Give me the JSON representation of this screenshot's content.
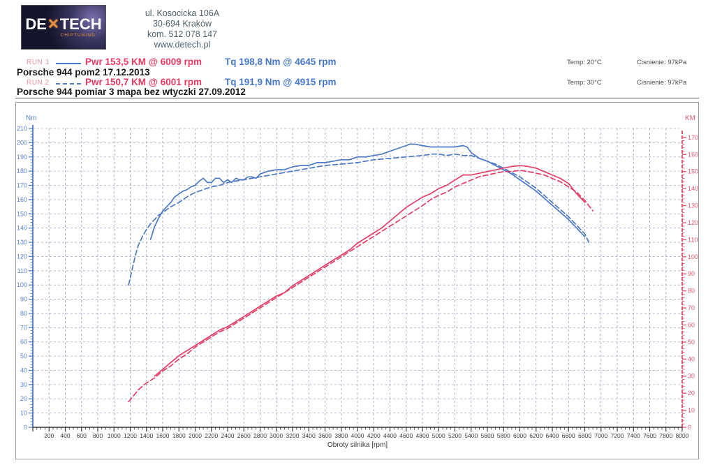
{
  "header": {
    "logo": {
      "left": "DE",
      "x_glyph": "✕",
      "right": "TECH",
      "sub": "CHIPTUNING"
    },
    "address_lines": [
      "ul. Kosocicka 106A",
      "30-694 Kraków",
      "kom. 512 078 147",
      "www.detech.pl"
    ]
  },
  "runs": [
    {
      "label": "RUN 1",
      "line_style": "solid",
      "pwr": "Pwr 153,5 KM @ 6009 rpm",
      "tq": "Tq 198,8 Nm @ 4645 rpm",
      "temp": "Temp: 20°C",
      "pressure": "Cisnienie: 97kPa",
      "title": "Porsche 944 pom2  17.12.2013"
    },
    {
      "label": "RUN 2",
      "line_style": "dashed",
      "pwr": "Pwr 150,7 KM @ 6001 rpm",
      "tq": "Tq 191,9 Nm @ 4915 rpm",
      "temp": "Temp: 30°C",
      "pressure": "Cisnienie: 97kPa",
      "title": "Porsche 944 pomiar 3 mapa bez wtyczki  27.09.2012"
    }
  ],
  "colors": {
    "torque_blue": "#4d79c4",
    "power_red": "#e23f68",
    "left_axis": "#5b82cc",
    "right_axis": "#e05672",
    "bottom_axis": "#333333",
    "grid_h": "#a4afc6",
    "grid_v": "#98a2b2",
    "pwr_text": "#ea3a63",
    "tq_text": "#4577cb",
    "run_label": "#ea93a0",
    "logo_accent": "#e8913f"
  },
  "chart_data": {
    "type": "line",
    "title": "",
    "xlabel": "Obroty silnika [rpm]",
    "x_range": [
      0,
      8000
    ],
    "x_tick_step": 200,
    "x_minor_step": 50,
    "grid": true,
    "left_axis": {
      "label": "Nm",
      "range": [
        0,
        210
      ],
      "tick_step": 10,
      "minor_step": 2
    },
    "right_axis": {
      "label": "KM",
      "range": [
        0,
        172
      ],
      "tick_step": 10,
      "minor_step": 2
    },
    "series": [
      {
        "name": "RUN 1 torque (Nm)",
        "axis": "left",
        "style": "solid",
        "color": "#4d79c4",
        "peak": "198,8 Nm @ 4645 rpm",
        "points": [
          [
            1450,
            132
          ],
          [
            1500,
            141
          ],
          [
            1550,
            147
          ],
          [
            1600,
            152
          ],
          [
            1650,
            155
          ],
          [
            1700,
            158
          ],
          [
            1750,
            162
          ],
          [
            1800,
            164
          ],
          [
            1850,
            166
          ],
          [
            1900,
            167
          ],
          [
            1950,
            169
          ],
          [
            2000,
            170
          ],
          [
            2050,
            173
          ],
          [
            2100,
            175
          ],
          [
            2150,
            172
          ],
          [
            2200,
            172
          ],
          [
            2250,
            175
          ],
          [
            2300,
            175
          ],
          [
            2350,
            172
          ],
          [
            2400,
            174
          ],
          [
            2450,
            172
          ],
          [
            2500,
            175
          ],
          [
            2550,
            174
          ],
          [
            2600,
            174
          ],
          [
            2650,
            176
          ],
          [
            2700,
            176
          ],
          [
            2750,
            175
          ],
          [
            2800,
            178
          ],
          [
            2850,
            179
          ],
          [
            2900,
            180
          ],
          [
            3000,
            181
          ],
          [
            3100,
            181
          ],
          [
            3200,
            183
          ],
          [
            3300,
            184
          ],
          [
            3400,
            184
          ],
          [
            3500,
            186
          ],
          [
            3600,
            186
          ],
          [
            3700,
            187
          ],
          [
            3800,
            188
          ],
          [
            3900,
            188
          ],
          [
            4000,
            190
          ],
          [
            4100,
            190
          ],
          [
            4200,
            191
          ],
          [
            4300,
            192
          ],
          [
            4400,
            194
          ],
          [
            4500,
            196
          ],
          [
            4600,
            198
          ],
          [
            4645,
            199
          ],
          [
            4700,
            199
          ],
          [
            4800,
            198
          ],
          [
            4900,
            197
          ],
          [
            5000,
            197
          ],
          [
            5100,
            197
          ],
          [
            5200,
            197
          ],
          [
            5300,
            198
          ],
          [
            5350,
            197
          ],
          [
            5400,
            193
          ],
          [
            5500,
            189
          ],
          [
            5600,
            187
          ],
          [
            5700,
            184
          ],
          [
            5800,
            181
          ],
          [
            5900,
            178
          ],
          [
            6000,
            174
          ],
          [
            6100,
            170
          ],
          [
            6200,
            166
          ],
          [
            6300,
            161
          ],
          [
            6400,
            156
          ],
          [
            6500,
            151
          ],
          [
            6600,
            146
          ],
          [
            6700,
            140
          ],
          [
            6800,
            134
          ]
        ]
      },
      {
        "name": "RUN 2 torque (Nm)",
        "axis": "left",
        "style": "dashed",
        "color": "#4d79c4",
        "peak": "191,9 Nm @ 4915 rpm",
        "points": [
          [
            1180,
            100
          ],
          [
            1220,
            110
          ],
          [
            1260,
            120
          ],
          [
            1300,
            128
          ],
          [
            1350,
            134
          ],
          [
            1400,
            139
          ],
          [
            1450,
            143
          ],
          [
            1500,
            146
          ],
          [
            1550,
            149
          ],
          [
            1600,
            151
          ],
          [
            1700,
            155
          ],
          [
            1800,
            158
          ],
          [
            1900,
            162
          ],
          [
            2000,
            165
          ],
          [
            2100,
            167
          ],
          [
            2200,
            169
          ],
          [
            2300,
            170
          ],
          [
            2400,
            172
          ],
          [
            2500,
            173
          ],
          [
            2600,
            174
          ],
          [
            2700,
            175
          ],
          [
            2800,
            176
          ],
          [
            2900,
            177
          ],
          [
            3000,
            178
          ],
          [
            3200,
            180
          ],
          [
            3400,
            182
          ],
          [
            3600,
            184
          ],
          [
            3800,
            185
          ],
          [
            4000,
            186
          ],
          [
            4200,
            188
          ],
          [
            4400,
            189
          ],
          [
            4600,
            190
          ],
          [
            4800,
            191
          ],
          [
            4915,
            192
          ],
          [
            5000,
            192
          ],
          [
            5100,
            191
          ],
          [
            5200,
            192
          ],
          [
            5300,
            191
          ],
          [
            5400,
            191
          ],
          [
            5500,
            189
          ],
          [
            5600,
            187
          ],
          [
            5700,
            185
          ],
          [
            5800,
            182
          ],
          [
            5900,
            179
          ],
          [
            6000,
            176
          ],
          [
            6100,
            172
          ],
          [
            6200,
            168
          ],
          [
            6300,
            163
          ],
          [
            6400,
            158
          ],
          [
            6500,
            153
          ],
          [
            6600,
            148
          ],
          [
            6700,
            142
          ],
          [
            6800,
            136
          ],
          [
            6850,
            130
          ]
        ]
      },
      {
        "name": "RUN 1 power (KM)",
        "axis": "right",
        "style": "solid",
        "color": "#e23f68",
        "peak": "153,5 KM @ 6009 rpm",
        "points": [
          [
            1500,
            30
          ],
          [
            1600,
            34
          ],
          [
            1700,
            38
          ],
          [
            1800,
            42
          ],
          [
            1900,
            45
          ],
          [
            2000,
            48
          ],
          [
            2100,
            51
          ],
          [
            2200,
            54
          ],
          [
            2300,
            57
          ],
          [
            2400,
            59
          ],
          [
            2500,
            62
          ],
          [
            2600,
            65
          ],
          [
            2700,
            68
          ],
          [
            2800,
            71
          ],
          [
            2900,
            74
          ],
          [
            3000,
            77
          ],
          [
            3100,
            79
          ],
          [
            3200,
            83
          ],
          [
            3300,
            86
          ],
          [
            3400,
            89
          ],
          [
            3500,
            92
          ],
          [
            3600,
            95
          ],
          [
            3700,
            98
          ],
          [
            3800,
            101
          ],
          [
            3900,
            104
          ],
          [
            4000,
            108
          ],
          [
            4100,
            111
          ],
          [
            4200,
            114
          ],
          [
            4300,
            117
          ],
          [
            4400,
            121
          ],
          [
            4500,
            125
          ],
          [
            4600,
            129
          ],
          [
            4700,
            132
          ],
          [
            4800,
            135
          ],
          [
            4900,
            137
          ],
          [
            5000,
            140
          ],
          [
            5100,
            142
          ],
          [
            5200,
            145
          ],
          [
            5300,
            148
          ],
          [
            5400,
            148
          ],
          [
            5500,
            149
          ],
          [
            5600,
            150
          ],
          [
            5700,
            151
          ],
          [
            5800,
            152
          ],
          [
            5900,
            153
          ],
          [
            6009,
            153.5
          ],
          [
            6100,
            153
          ],
          [
            6200,
            152
          ],
          [
            6300,
            150
          ],
          [
            6400,
            148
          ],
          [
            6500,
            146
          ],
          [
            6600,
            143
          ],
          [
            6700,
            137
          ],
          [
            6800,
            132
          ]
        ]
      },
      {
        "name": "RUN 2 power (KM)",
        "axis": "right",
        "style": "dashed",
        "color": "#e23f68",
        "peak": "150,7 KM @ 6001 rpm",
        "points": [
          [
            1180,
            15
          ],
          [
            1250,
            19
          ],
          [
            1300,
            22
          ],
          [
            1400,
            26
          ],
          [
            1500,
            29
          ],
          [
            1600,
            33
          ],
          [
            1700,
            36
          ],
          [
            1800,
            40
          ],
          [
            1900,
            43
          ],
          [
            2000,
            47
          ],
          [
            2100,
            50
          ],
          [
            2200,
            53
          ],
          [
            2300,
            56
          ],
          [
            2400,
            58
          ],
          [
            2500,
            61
          ],
          [
            2600,
            64
          ],
          [
            2700,
            67
          ],
          [
            2800,
            70
          ],
          [
            2900,
            73
          ],
          [
            3000,
            76
          ],
          [
            3200,
            82
          ],
          [
            3400,
            88
          ],
          [
            3600,
            94
          ],
          [
            3800,
            100
          ],
          [
            4000,
            106
          ],
          [
            4200,
            112
          ],
          [
            4400,
            118
          ],
          [
            4600,
            124
          ],
          [
            4800,
            130
          ],
          [
            4915,
            134
          ],
          [
            5000,
            136
          ],
          [
            5100,
            138
          ],
          [
            5200,
            141
          ],
          [
            5300,
            143
          ],
          [
            5400,
            145
          ],
          [
            5500,
            147
          ],
          [
            5600,
            148
          ],
          [
            5700,
            149
          ],
          [
            5800,
            150
          ],
          [
            5900,
            150
          ],
          [
            6001,
            150.7
          ],
          [
            6100,
            150
          ],
          [
            6200,
            149
          ],
          [
            6300,
            148
          ],
          [
            6400,
            146
          ],
          [
            6500,
            144
          ],
          [
            6600,
            141
          ],
          [
            6700,
            138
          ],
          [
            6800,
            133
          ],
          [
            6900,
            127
          ]
        ]
      }
    ]
  }
}
